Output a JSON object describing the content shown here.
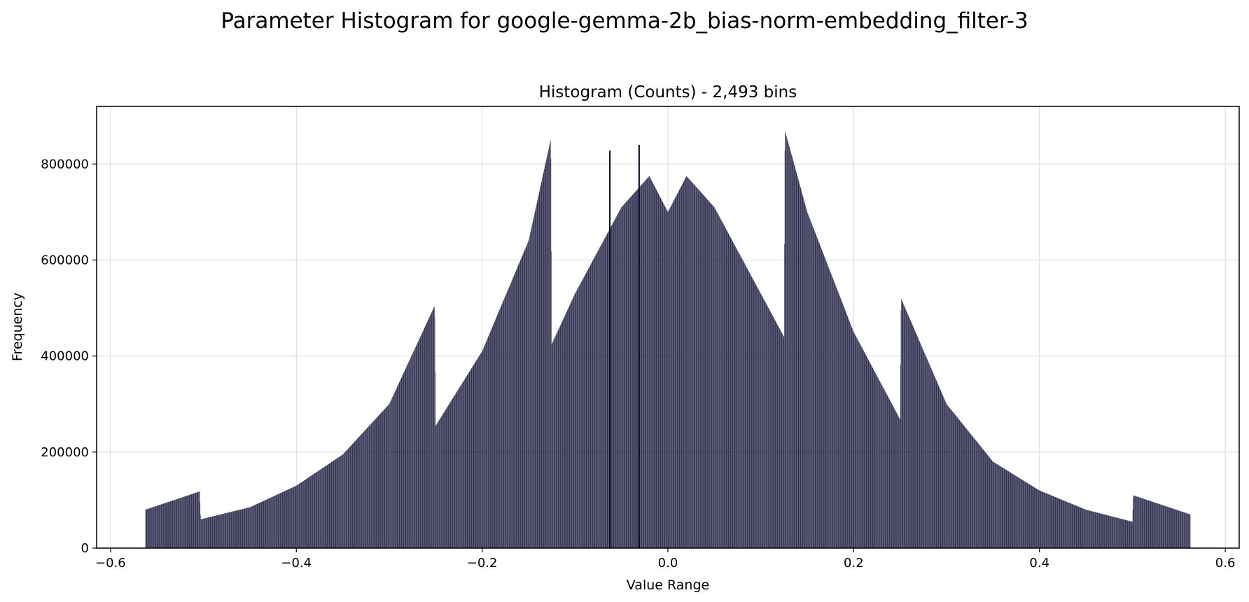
{
  "chart_data": {
    "type": "bar",
    "suptitle": "Parameter Histogram for google-gemma-2b_bias-norm-embedding_filter-3",
    "title": "Histogram (Counts) - 2,493 bins",
    "xlabel": "Value Range",
    "ylabel": "Frequency",
    "xlim": [
      -0.615,
      0.615
    ],
    "ylim": [
      0,
      920000
    ],
    "xticks": [
      -0.6,
      -0.4,
      -0.2,
      0.0,
      0.2,
      0.4,
      0.6
    ],
    "xtick_labels": [
      "−0.6",
      "−0.4",
      "−0.2",
      "0.0",
      "0.2",
      "0.4",
      "0.6"
    ],
    "yticks": [
      0,
      200000,
      400000,
      600000,
      800000
    ],
    "ytick_labels": [
      "0",
      "200000",
      "400000",
      "600000",
      "800000"
    ],
    "grid": true,
    "bar_color": "#04042a",
    "bins": 2493,
    "data_range": [
      -0.5625,
      0.5625
    ],
    "profile": [
      {
        "x": -0.5625,
        "y": 80000
      },
      {
        "x": -0.504,
        "y": 118000
      },
      {
        "x": -0.503,
        "y": 60000
      },
      {
        "x": -0.45,
        "y": 85000
      },
      {
        "x": -0.4,
        "y": 130000
      },
      {
        "x": -0.35,
        "y": 195000
      },
      {
        "x": -0.3,
        "y": 300000
      },
      {
        "x": -0.251,
        "y": 505000
      },
      {
        "x": -0.25,
        "y": 255000
      },
      {
        "x": -0.2,
        "y": 410000
      },
      {
        "x": -0.15,
        "y": 640000
      },
      {
        "x": -0.126,
        "y": 852000
      },
      {
        "x": -0.125,
        "y": 425000
      },
      {
        "x": -0.1,
        "y": 530000
      },
      {
        "x": -0.05,
        "y": 710000
      },
      {
        "x": -0.02,
        "y": 775000
      },
      {
        "x": 0.0,
        "y": 700000
      },
      {
        "x": 0.02,
        "y": 775000
      },
      {
        "x": 0.05,
        "y": 710000
      },
      {
        "x": 0.1,
        "y": 530000
      },
      {
        "x": 0.125,
        "y": 440000
      },
      {
        "x": 0.126,
        "y": 870000
      },
      {
        "x": 0.15,
        "y": 700000
      },
      {
        "x": 0.2,
        "y": 450000
      },
      {
        "x": 0.25,
        "y": 268000
      },
      {
        "x": 0.251,
        "y": 520000
      },
      {
        "x": 0.3,
        "y": 300000
      },
      {
        "x": 0.35,
        "y": 180000
      },
      {
        "x": 0.4,
        "y": 120000
      },
      {
        "x": 0.45,
        "y": 80000
      },
      {
        "x": 0.5,
        "y": 55000
      },
      {
        "x": 0.501,
        "y": 110000
      },
      {
        "x": 0.5625,
        "y": 70000
      }
    ],
    "spikes": [
      {
        "x": -0.0625,
        "y": 828000
      },
      {
        "x": -0.031,
        "y": 840000
      }
    ]
  }
}
